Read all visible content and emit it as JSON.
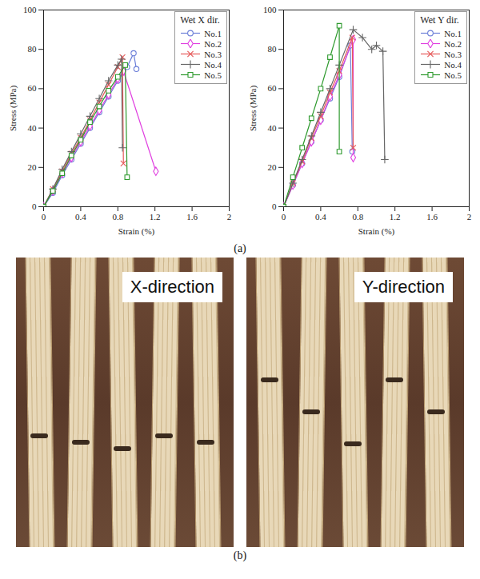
{
  "chart_data": [
    {
      "type": "line",
      "title": "Wet X dir.",
      "x_label": "Strain (%)",
      "y_label": "Stress (MPa)",
      "xlim": [
        0,
        2
      ],
      "ylim": [
        0,
        100
      ],
      "xticks": [
        0,
        0.4,
        0.8,
        1.2,
        1.6,
        2
      ],
      "yticks": [
        0,
        20,
        40,
        60,
        80,
        100
      ],
      "grid": false,
      "legend": "upper right",
      "series": [
        {
          "name": "No.1",
          "color": "#6c7fd8",
          "marker": "circle",
          "x": [
            0,
            0.1,
            0.2,
            0.3,
            0.4,
            0.5,
            0.6,
            0.7,
            0.8,
            0.9,
            0.97,
            1.0
          ],
          "values": [
            0,
            7,
            16,
            24,
            32,
            40,
            48,
            56,
            64,
            71,
            78,
            70
          ]
        },
        {
          "name": "No.2",
          "color": "#e040e0",
          "marker": "diamond",
          "x": [
            0,
            0.1,
            0.2,
            0.3,
            0.4,
            0.5,
            0.6,
            0.7,
            0.8,
            0.86,
            1.21
          ],
          "values": [
            0,
            8,
            17,
            25,
            33,
            41,
            49,
            57,
            65,
            69,
            18
          ]
        },
        {
          "name": "No.3",
          "color": "#e65a5a",
          "marker": "times",
          "x": [
            0,
            0.1,
            0.2,
            0.3,
            0.4,
            0.5,
            0.6,
            0.7,
            0.8,
            0.85,
            0.86
          ],
          "values": [
            0,
            9,
            18,
            27,
            35,
            44,
            53,
            62,
            71,
            76,
            22
          ]
        },
        {
          "name": "No.4",
          "color": "#666666",
          "marker": "plus",
          "x": [
            0,
            0.1,
            0.2,
            0.3,
            0.4,
            0.5,
            0.6,
            0.7,
            0.8,
            0.84,
            0.85
          ],
          "values": [
            0,
            9,
            19,
            28,
            37,
            46,
            55,
            64,
            72,
            75,
            30
          ]
        },
        {
          "name": "No.5",
          "color": "#2e9a2e",
          "marker": "square",
          "x": [
            0,
            0.1,
            0.2,
            0.3,
            0.4,
            0.5,
            0.6,
            0.7,
            0.8,
            0.88,
            0.9
          ],
          "values": [
            0,
            8,
            17,
            26,
            34,
            43,
            51,
            59,
            66,
            72,
            15
          ]
        }
      ]
    },
    {
      "type": "line",
      "title": "Wet Y dir.",
      "x_label": "Strain (%)",
      "y_label": "Stress (MPa)",
      "xlim": [
        0,
        2
      ],
      "ylim": [
        0,
        100
      ],
      "xticks": [
        0,
        0.4,
        0.8,
        1.2,
        1.6,
        2
      ],
      "yticks": [
        0,
        20,
        40,
        60,
        80,
        100
      ],
      "grid": false,
      "legend": "upper right",
      "series": [
        {
          "name": "No.1",
          "color": "#6c7fd8",
          "marker": "circle",
          "x": [
            0,
            0.1,
            0.2,
            0.3,
            0.4,
            0.5,
            0.6,
            0.72,
            0.74
          ],
          "values": [
            0,
            11,
            22,
            33,
            44,
            55,
            66,
            82,
            28
          ]
        },
        {
          "name": "No.2",
          "color": "#e040e0",
          "marker": "diamond",
          "x": [
            0,
            0.1,
            0.2,
            0.3,
            0.4,
            0.5,
            0.6,
            0.75,
            0.75
          ],
          "values": [
            0,
            11,
            22,
            33,
            44,
            56,
            67,
            85,
            25
          ]
        },
        {
          "name": "No.3",
          "color": "#e65a5a",
          "marker": "times",
          "x": [
            0,
            0.1,
            0.2,
            0.3,
            0.4,
            0.5,
            0.6,
            0.74,
            0.75
          ],
          "values": [
            0,
            12,
            23,
            35,
            46,
            58,
            69,
            86,
            30
          ]
        },
        {
          "name": "No.4",
          "color": "#666666",
          "marker": "plus",
          "x": [
            0,
            0.1,
            0.2,
            0.3,
            0.4,
            0.5,
            0.6,
            0.75,
            0.85,
            0.95,
            1.0,
            1.07,
            1.09
          ],
          "values": [
            0,
            12,
            24,
            36,
            48,
            60,
            72,
            90,
            86,
            80,
            82,
            79,
            24
          ]
        },
        {
          "name": "No.5",
          "color": "#2e9a2e",
          "marker": "square",
          "x": [
            0,
            0.1,
            0.2,
            0.3,
            0.4,
            0.5,
            0.6,
            0.6
          ],
          "values": [
            0,
            15,
            30,
            45,
            60,
            76,
            92,
            28
          ]
        }
      ]
    }
  ],
  "panel_labels": [
    "(a)",
    "(b)"
  ],
  "photos": [
    {
      "label": "X-direction"
    },
    {
      "label": "Y-direction"
    }
  ]
}
